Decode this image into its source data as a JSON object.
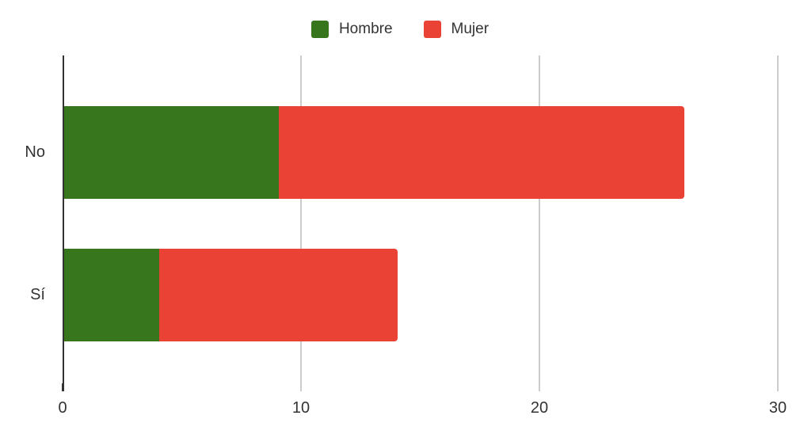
{
  "chart_data": {
    "type": "bar",
    "orientation": "horizontal",
    "stacked": true,
    "title": "",
    "categories": [
      "No",
      "Sí"
    ],
    "series": [
      {
        "name": "Hombre",
        "color": "#38761d",
        "values": [
          9,
          4
        ]
      },
      {
        "name": "Mujer",
        "color": "#ea4335",
        "values": [
          17,
          10
        ]
      }
    ],
    "category_totals": [
      26,
      14
    ],
    "x_ticks": [
      0,
      10,
      20,
      30
    ],
    "xlim": [
      0,
      31
    ],
    "grid": true,
    "legend_position": "top",
    "axis_color": "#333333",
    "gridline_color": "#cccccc",
    "text_color": "#333333",
    "background_color": "#ffffff"
  }
}
